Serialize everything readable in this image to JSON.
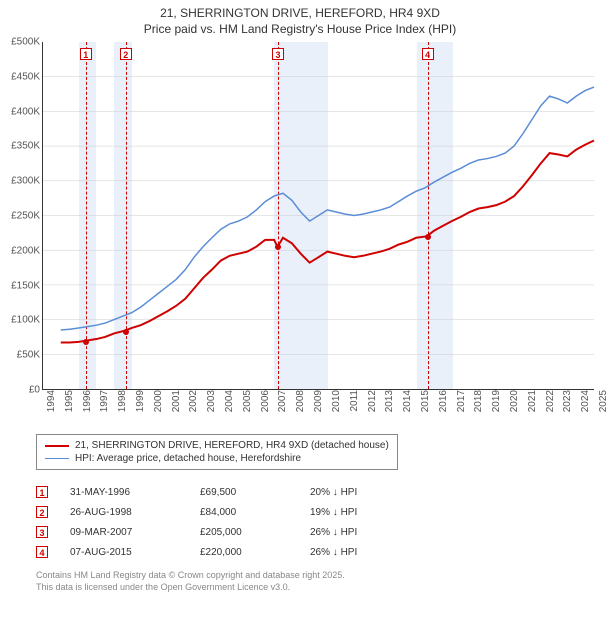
{
  "title": {
    "line1": "21, SHERRINGTON DRIVE, HEREFORD, HR4 9XD",
    "line2": "Price paid vs. HM Land Registry's House Price Index (HPI)"
  },
  "chart": {
    "type": "line",
    "background_color": "#ffffff",
    "grid_color": "#cccccc",
    "x_start_year": 1994,
    "x_end_year": 2025,
    "ylim": [
      0,
      500000
    ],
    "ytick_step": 50000,
    "y_labels": [
      "£0",
      "£50K",
      "£100K",
      "£150K",
      "£200K",
      "£250K",
      "£300K",
      "£350K",
      "£400K",
      "£450K",
      "£500K"
    ],
    "x_years": [
      1994,
      1995,
      1996,
      1997,
      1998,
      1999,
      2000,
      2001,
      2002,
      2003,
      2004,
      2005,
      2006,
      2007,
      2008,
      2009,
      2010,
      2011,
      2012,
      2013,
      2014,
      2015,
      2016,
      2017,
      2018,
      2019,
      2020,
      2021,
      2022,
      2023,
      2024,
      2025
    ],
    "shaded_years": [
      1996,
      1998,
      2007,
      2008,
      2009,
      2015,
      2016
    ],
    "series": [
      {
        "name": "property",
        "label": "21, SHERRINGTON DRIVE, HEREFORD, HR4 9XD (detached house)",
        "color": "#d00000",
        "line_width": 2,
        "points": [
          [
            1995.0,
            67000
          ],
          [
            1995.5,
            67000
          ],
          [
            1996.0,
            68000
          ],
          [
            1996.4,
            69500
          ],
          [
            1997.0,
            72000
          ],
          [
            1997.5,
            75000
          ],
          [
            1998.0,
            80000
          ],
          [
            1998.6,
            84000
          ],
          [
            1999.0,
            88000
          ],
          [
            1999.5,
            92000
          ],
          [
            2000.0,
            98000
          ],
          [
            2000.5,
            105000
          ],
          [
            2001.0,
            112000
          ],
          [
            2001.5,
            120000
          ],
          [
            2002.0,
            130000
          ],
          [
            2002.5,
            145000
          ],
          [
            2003.0,
            160000
          ],
          [
            2003.5,
            172000
          ],
          [
            2004.0,
            185000
          ],
          [
            2004.5,
            192000
          ],
          [
            2005.0,
            195000
          ],
          [
            2005.5,
            198000
          ],
          [
            2006.0,
            205000
          ],
          [
            2006.5,
            215000
          ],
          [
            2007.0,
            215000
          ],
          [
            2007.2,
            205000
          ],
          [
            2007.5,
            218000
          ],
          [
            2008.0,
            210000
          ],
          [
            2008.5,
            195000
          ],
          [
            2009.0,
            182000
          ],
          [
            2009.5,
            190000
          ],
          [
            2010.0,
            198000
          ],
          [
            2010.5,
            195000
          ],
          [
            2011.0,
            192000
          ],
          [
            2011.5,
            190000
          ],
          [
            2012.0,
            192000
          ],
          [
            2012.5,
            195000
          ],
          [
            2013.0,
            198000
          ],
          [
            2013.5,
            202000
          ],
          [
            2014.0,
            208000
          ],
          [
            2014.5,
            212000
          ],
          [
            2015.0,
            218000
          ],
          [
            2015.6,
            220000
          ],
          [
            2016.0,
            228000
          ],
          [
            2016.5,
            235000
          ],
          [
            2017.0,
            242000
          ],
          [
            2017.5,
            248000
          ],
          [
            2018.0,
            255000
          ],
          [
            2018.5,
            260000
          ],
          [
            2019.0,
            262000
          ],
          [
            2019.5,
            265000
          ],
          [
            2020.0,
            270000
          ],
          [
            2020.5,
            278000
          ],
          [
            2021.0,
            292000
          ],
          [
            2021.5,
            308000
          ],
          [
            2022.0,
            325000
          ],
          [
            2022.5,
            340000
          ],
          [
            2023.0,
            338000
          ],
          [
            2023.5,
            335000
          ],
          [
            2024.0,
            345000
          ],
          [
            2024.5,
            352000
          ],
          [
            2025.0,
            358000
          ]
        ]
      },
      {
        "name": "hpi",
        "label": "HPI: Average price, detached house, Herefordshire",
        "color": "#5b8dd6",
        "line_width": 1.5,
        "points": [
          [
            1995.0,
            85000
          ],
          [
            1995.5,
            86000
          ],
          [
            1996.0,
            88000
          ],
          [
            1996.5,
            90000
          ],
          [
            1997.0,
            92000
          ],
          [
            1997.5,
            95000
          ],
          [
            1998.0,
            100000
          ],
          [
            1998.5,
            105000
          ],
          [
            1999.0,
            110000
          ],
          [
            1999.5,
            118000
          ],
          [
            2000.0,
            128000
          ],
          [
            2000.5,
            138000
          ],
          [
            2001.0,
            148000
          ],
          [
            2001.5,
            158000
          ],
          [
            2002.0,
            172000
          ],
          [
            2002.5,
            190000
          ],
          [
            2003.0,
            205000
          ],
          [
            2003.5,
            218000
          ],
          [
            2004.0,
            230000
          ],
          [
            2004.5,
            238000
          ],
          [
            2005.0,
            242000
          ],
          [
            2005.5,
            248000
          ],
          [
            2006.0,
            258000
          ],
          [
            2006.5,
            270000
          ],
          [
            2007.0,
            278000
          ],
          [
            2007.5,
            282000
          ],
          [
            2008.0,
            272000
          ],
          [
            2008.5,
            255000
          ],
          [
            2009.0,
            242000
          ],
          [
            2009.5,
            250000
          ],
          [
            2010.0,
            258000
          ],
          [
            2010.5,
            255000
          ],
          [
            2011.0,
            252000
          ],
          [
            2011.5,
            250000
          ],
          [
            2012.0,
            252000
          ],
          [
            2012.5,
            255000
          ],
          [
            2013.0,
            258000
          ],
          [
            2013.5,
            262000
          ],
          [
            2014.0,
            270000
          ],
          [
            2014.5,
            278000
          ],
          [
            2015.0,
            285000
          ],
          [
            2015.5,
            290000
          ],
          [
            2016.0,
            298000
          ],
          [
            2016.5,
            305000
          ],
          [
            2017.0,
            312000
          ],
          [
            2017.5,
            318000
          ],
          [
            2018.0,
            325000
          ],
          [
            2018.5,
            330000
          ],
          [
            2019.0,
            332000
          ],
          [
            2019.5,
            335000
          ],
          [
            2020.0,
            340000
          ],
          [
            2020.5,
            350000
          ],
          [
            2021.0,
            368000
          ],
          [
            2021.5,
            388000
          ],
          [
            2022.0,
            408000
          ],
          [
            2022.5,
            422000
          ],
          [
            2023.0,
            418000
          ],
          [
            2023.5,
            412000
          ],
          [
            2024.0,
            422000
          ],
          [
            2024.5,
            430000
          ],
          [
            2025.0,
            435000
          ]
        ]
      }
    ],
    "sale_markers": [
      {
        "n": "1",
        "year": 1996.4,
        "price": 69500
      },
      {
        "n": "2",
        "year": 1998.65,
        "price": 84000
      },
      {
        "n": "3",
        "year": 2007.2,
        "price": 205000
      },
      {
        "n": "4",
        "year": 2015.6,
        "price": 220000
      }
    ]
  },
  "legend": {
    "items": [
      {
        "color": "#d00000",
        "width": 2,
        "label": "21, SHERRINGTON DRIVE, HEREFORD, HR4 9XD (detached house)"
      },
      {
        "color": "#5b8dd6",
        "width": 1.5,
        "label": "HPI: Average price, detached house, Herefordshire"
      }
    ]
  },
  "sales": [
    {
      "n": "1",
      "date": "31-MAY-1996",
      "price": "£69,500",
      "diff": "20% ↓ HPI"
    },
    {
      "n": "2",
      "date": "26-AUG-1998",
      "price": "£84,000",
      "diff": "19% ↓ HPI"
    },
    {
      "n": "3",
      "date": "09-MAR-2007",
      "price": "£205,000",
      "diff": "26% ↓ HPI"
    },
    {
      "n": "4",
      "date": "07-AUG-2015",
      "price": "£220,000",
      "diff": "26% ↓ HPI"
    }
  ],
  "footer": {
    "line1": "Contains HM Land Registry data © Crown copyright and database right 2025.",
    "line2": "This data is licensed under the Open Government Licence v3.0."
  }
}
